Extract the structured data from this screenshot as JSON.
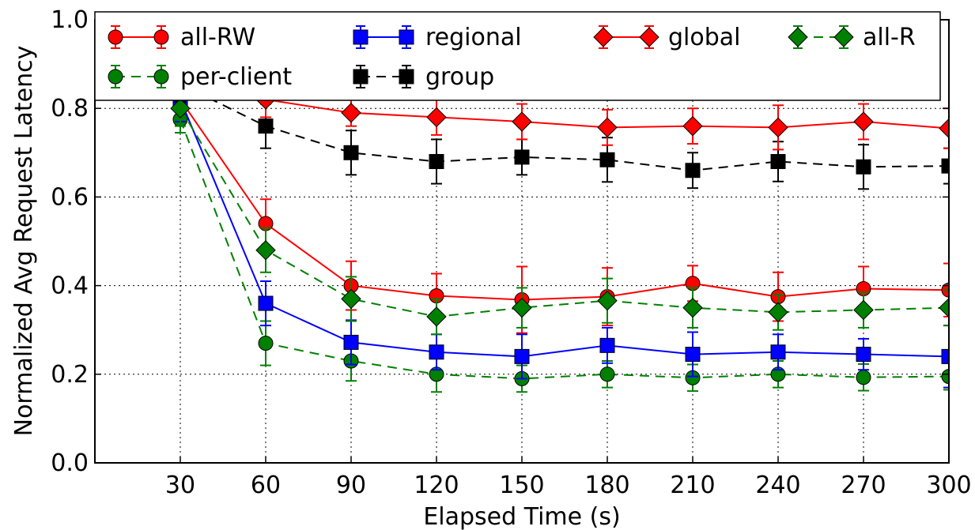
{
  "chart_data": {
    "type": "line",
    "xlabel": "Elapsed Time (s)",
    "ylabel": "Normalized Avg Request Latency",
    "xlim": [
      0,
      300
    ],
    "ylim": [
      0,
      1.0
    ],
    "xticks": [
      30,
      60,
      90,
      120,
      150,
      180,
      210,
      240,
      270,
      300
    ],
    "yticks": [
      0.0,
      0.2,
      0.4,
      0.6,
      0.8,
      1.0
    ],
    "ytick_labels": [
      "0.0",
      "0.2",
      "0.4",
      "0.6",
      "0.8",
      "1.0"
    ],
    "grid": true,
    "legend_position": "top",
    "x": [
      30,
      60,
      90,
      120,
      150,
      180,
      210,
      240,
      270,
      300
    ],
    "series": [
      {
        "name": "all-RW",
        "color": "#ff0000",
        "marker": "circle",
        "line": "solid",
        "values": [
          0.82,
          0.54,
          0.4,
          0.377,
          0.368,
          0.375,
          0.405,
          0.375,
          0.393,
          0.39
        ],
        "errors": [
          0.05,
          0.055,
          0.055,
          0.05,
          0.075,
          0.065,
          0.04,
          0.055,
          0.05,
          0.06
        ]
      },
      {
        "name": "per-client",
        "color": "#008000",
        "marker": "circle",
        "line": "dashed",
        "values": [
          0.775,
          0.27,
          0.23,
          0.2,
          0.19,
          0.2,
          0.192,
          0.2,
          0.193,
          0.195
        ],
        "errors": [
          0.03,
          0.05,
          0.045,
          0.04,
          0.03,
          0.03,
          0.03,
          0.03,
          0.03,
          0.03
        ]
      },
      {
        "name": "regional",
        "color": "#0000ff",
        "marker": "square",
        "line": "solid",
        "values": [
          0.82,
          0.36,
          0.272,
          0.25,
          0.24,
          0.265,
          0.245,
          0.25,
          0.245,
          0.24
        ],
        "errors": [
          0.05,
          0.05,
          0.05,
          0.04,
          0.05,
          0.04,
          0.05,
          0.04,
          0.035,
          0.07
        ]
      },
      {
        "name": "group",
        "color": "#000000",
        "marker": "square",
        "line": "dashed",
        "values": [
          0.855,
          0.76,
          0.7,
          0.68,
          0.69,
          0.684,
          0.66,
          0.68,
          0.668,
          0.67
        ],
        "errors": [
          0.04,
          0.05,
          0.05,
          0.05,
          0.04,
          0.05,
          0.04,
          0.045,
          0.05,
          0.04
        ]
      },
      {
        "name": "global",
        "color": "#ff0000",
        "marker": "diamond",
        "line": "solid",
        "values": [
          0.83,
          0.82,
          0.79,
          0.78,
          0.77,
          0.757,
          0.76,
          0.757,
          0.77,
          0.755
        ],
        "errors": [
          0.03,
          0.04,
          0.03,
          0.04,
          0.04,
          0.04,
          0.04,
          0.05,
          0.04,
          0.045
        ]
      },
      {
        "name": "all-R",
        "color": "#008000",
        "marker": "diamond",
        "line": "dashed",
        "values": [
          0.8,
          0.48,
          0.37,
          0.33,
          0.35,
          0.366,
          0.35,
          0.34,
          0.345,
          0.35
        ],
        "errors": [
          0.04,
          0.05,
          0.05,
          0.04,
          0.045,
          0.05,
          0.045,
          0.04,
          0.04,
          0.04
        ]
      }
    ]
  }
}
